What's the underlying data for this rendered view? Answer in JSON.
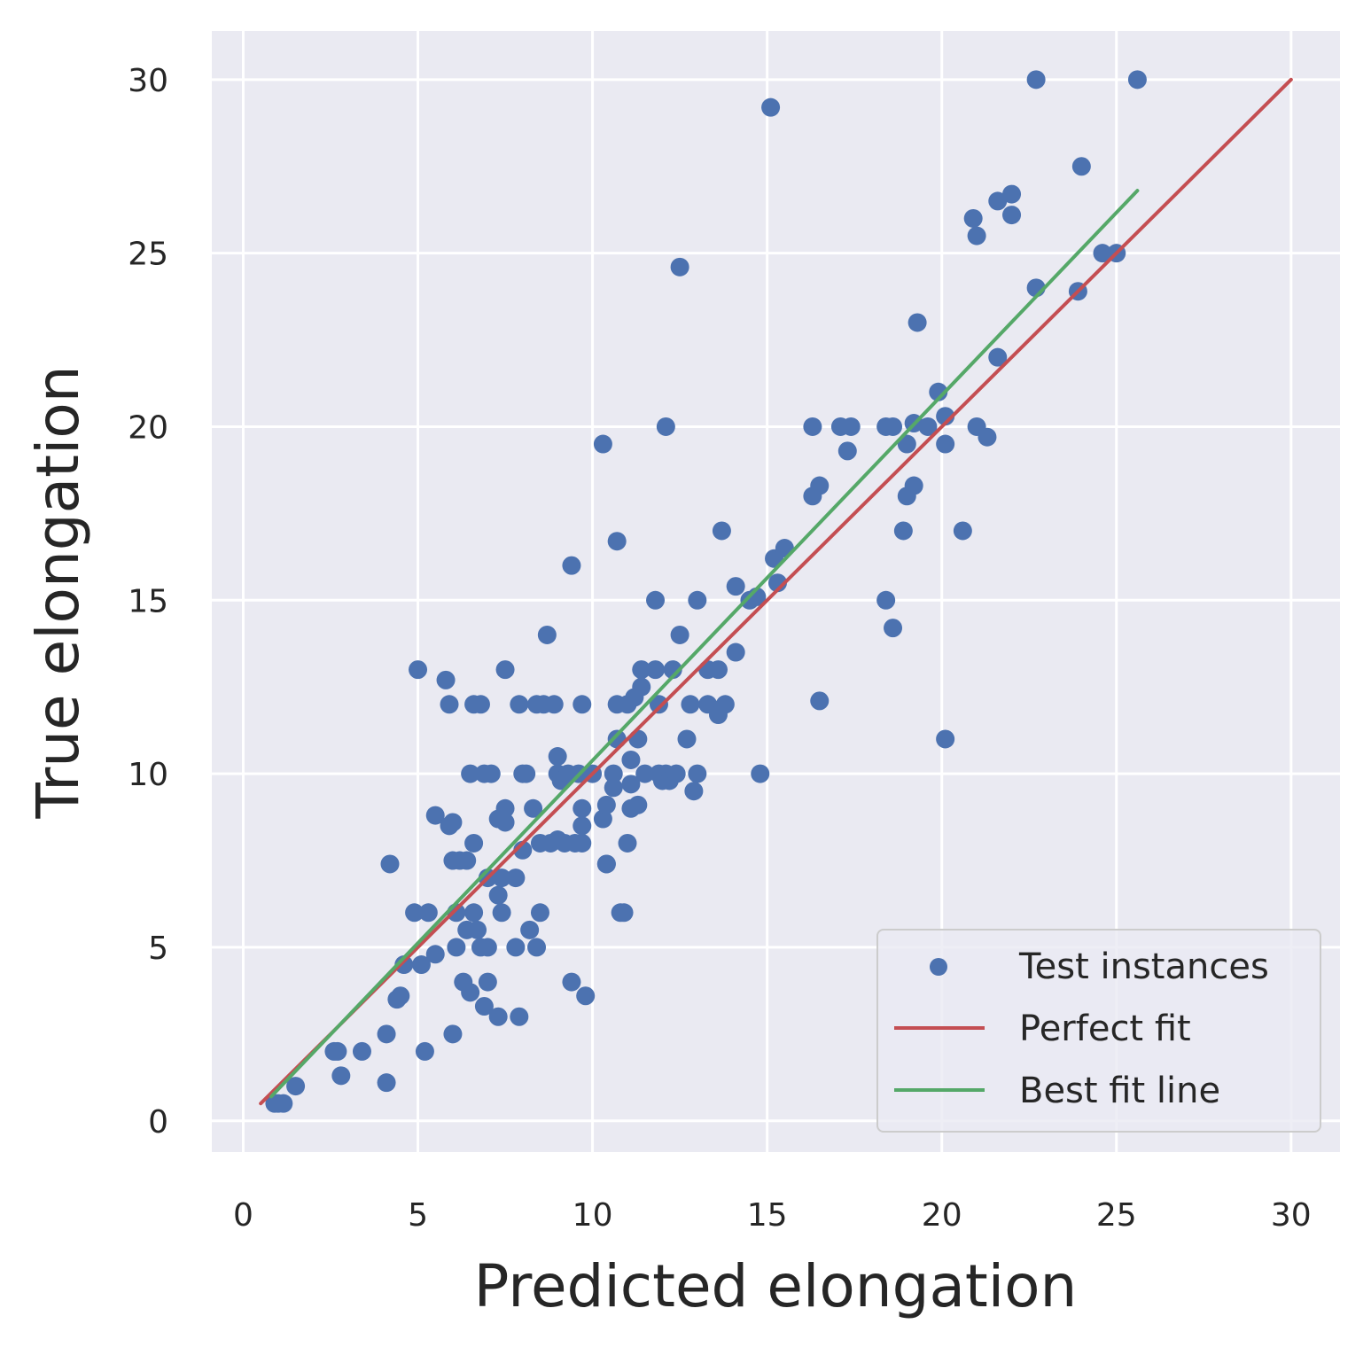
{
  "chart_data": {
    "type": "scatter",
    "xlabel": "Predicted elongation",
    "ylabel": "True elongation",
    "xlim": [
      -0.9,
      31.4
    ],
    "ylim": [
      -0.9,
      31.4
    ],
    "xticks": [
      0,
      5,
      10,
      15,
      20,
      25,
      30
    ],
    "yticks": [
      0,
      5,
      10,
      15,
      20,
      25,
      30
    ],
    "grid": true,
    "legend_position": "lower-right",
    "colors": {
      "background": "#eaeaf2",
      "grid": "#ffffff",
      "points": "#4c72b0",
      "perfect_fit": "#c44e52",
      "best_fit": "#55a868",
      "legend_frame": "#cccccc"
    },
    "series": [
      {
        "name": "Test instances",
        "type": "scatter",
        "points": [
          [
            0.9,
            0.5
          ],
          [
            1.0,
            0.5
          ],
          [
            1.15,
            0.5
          ],
          [
            1.5,
            1.0
          ],
          [
            2.6,
            2.0
          ],
          [
            2.7,
            2.0
          ],
          [
            2.8,
            1.3
          ],
          [
            3.4,
            2.0
          ],
          [
            4.1,
            1.1
          ],
          [
            4.1,
            2.5
          ],
          [
            4.2,
            7.4
          ],
          [
            4.4,
            3.5
          ],
          [
            4.5,
            3.6
          ],
          [
            4.6,
            4.5
          ],
          [
            4.9,
            6.0
          ],
          [
            5.0,
            13.0
          ],
          [
            5.1,
            4.5
          ],
          [
            5.2,
            2.0
          ],
          [
            5.3,
            6.0
          ],
          [
            5.5,
            4.8
          ],
          [
            5.5,
            8.8
          ],
          [
            5.8,
            12.7
          ],
          [
            5.9,
            8.5
          ],
          [
            5.9,
            12.0
          ],
          [
            6.0,
            2.5
          ],
          [
            6.0,
            7.5
          ],
          [
            6.0,
            8.6
          ],
          [
            6.1,
            5.0
          ],
          [
            6.1,
            6.0
          ],
          [
            6.2,
            7.5
          ],
          [
            6.3,
            4.0
          ],
          [
            6.4,
            7.5
          ],
          [
            6.4,
            5.5
          ],
          [
            6.5,
            3.7
          ],
          [
            6.5,
            10.0
          ],
          [
            6.6,
            8.0
          ],
          [
            6.6,
            12.0
          ],
          [
            6.6,
            6.0
          ],
          [
            6.7,
            5.5
          ],
          [
            6.8,
            5.0
          ],
          [
            6.8,
            12.0
          ],
          [
            6.9,
            3.3
          ],
          [
            6.9,
            10.0
          ],
          [
            7.0,
            4.0
          ],
          [
            7.0,
            5.0
          ],
          [
            7.0,
            7.0
          ],
          [
            7.1,
            10.0
          ],
          [
            7.3,
            6.5
          ],
          [
            7.3,
            8.7
          ],
          [
            7.3,
            3.0
          ],
          [
            7.4,
            6.0
          ],
          [
            7.4,
            7.0
          ],
          [
            7.5,
            9.0
          ],
          [
            7.5,
            8.6
          ],
          [
            7.5,
            13.0
          ],
          [
            7.8,
            5.0
          ],
          [
            7.8,
            7.0
          ],
          [
            7.9,
            3.0
          ],
          [
            7.9,
            12.0
          ],
          [
            8.0,
            7.8
          ],
          [
            8.0,
            10.0
          ],
          [
            8.1,
            10.0
          ],
          [
            8.2,
            5.5
          ],
          [
            8.3,
            9.0
          ],
          [
            8.4,
            5.0
          ],
          [
            8.4,
            12.0
          ],
          [
            8.5,
            6.0
          ],
          [
            8.5,
            8.0
          ],
          [
            8.6,
            12.0
          ],
          [
            8.7,
            14.0
          ],
          [
            8.8,
            8.0
          ],
          [
            8.9,
            12.0
          ],
          [
            9.0,
            8.1
          ],
          [
            9.0,
            10.0
          ],
          [
            9.0,
            10.5
          ],
          [
            9.1,
            9.8
          ],
          [
            9.2,
            8.0
          ],
          [
            9.3,
            10.0
          ],
          [
            9.4,
            16.0
          ],
          [
            9.4,
            4.0
          ],
          [
            9.5,
            8.0
          ],
          [
            9.6,
            10.0
          ],
          [
            9.7,
            8.0
          ],
          [
            9.7,
            9.0
          ],
          [
            9.7,
            12.0
          ],
          [
            9.7,
            8.5
          ],
          [
            9.8,
            3.6
          ],
          [
            10.0,
            10.0
          ],
          [
            10.3,
            8.7
          ],
          [
            10.3,
            19.5
          ],
          [
            10.4,
            9.1
          ],
          [
            10.4,
            7.4
          ],
          [
            10.4,
            7.4
          ],
          [
            10.6,
            9.6
          ],
          [
            10.6,
            10.0
          ],
          [
            10.7,
            12.0
          ],
          [
            10.7,
            16.7
          ],
          [
            10.7,
            11.0
          ],
          [
            10.8,
            6.0
          ],
          [
            10.9,
            6.0
          ],
          [
            11.0,
            12.0
          ],
          [
            11.0,
            8.0
          ],
          [
            11.1,
            9.7
          ],
          [
            11.1,
            10.4
          ],
          [
            11.1,
            9.0
          ],
          [
            11.2,
            12.2
          ],
          [
            11.3,
            9.1
          ],
          [
            11.3,
            11.0
          ],
          [
            11.4,
            12.5
          ],
          [
            11.4,
            13.0
          ],
          [
            11.5,
            10.0
          ],
          [
            11.8,
            15.0
          ],
          [
            11.8,
            13.0
          ],
          [
            11.9,
            12.0
          ],
          [
            11.9,
            10.0
          ],
          [
            12.0,
            9.8
          ],
          [
            12.1,
            20.0
          ],
          [
            12.1,
            10.0
          ],
          [
            12.2,
            9.8
          ],
          [
            12.3,
            13.0
          ],
          [
            12.4,
            10.0
          ],
          [
            12.5,
            14.0
          ],
          [
            12.5,
            24.6
          ],
          [
            12.7,
            11.0
          ],
          [
            12.8,
            12.0
          ],
          [
            12.9,
            9.5
          ],
          [
            13.0,
            15.0
          ],
          [
            13.0,
            10.0
          ],
          [
            13.3,
            12.0
          ],
          [
            13.3,
            13.0
          ],
          [
            13.6,
            11.7
          ],
          [
            13.6,
            13.0
          ],
          [
            13.7,
            17.0
          ],
          [
            13.8,
            12.0
          ],
          [
            14.1,
            15.4
          ],
          [
            14.1,
            13.5
          ],
          [
            14.5,
            15.0
          ],
          [
            14.7,
            15.1
          ],
          [
            14.8,
            10.0
          ],
          [
            15.1,
            29.2
          ],
          [
            15.2,
            16.2
          ],
          [
            15.3,
            15.5
          ],
          [
            15.5,
            16.5
          ],
          [
            16.3,
            18.0
          ],
          [
            16.3,
            20.0
          ],
          [
            16.5,
            18.3
          ],
          [
            16.5,
            12.1
          ],
          [
            17.1,
            20.0
          ],
          [
            17.3,
            19.3
          ],
          [
            17.4,
            20.0
          ],
          [
            18.4,
            15.0
          ],
          [
            18.4,
            20.0
          ],
          [
            18.6,
            14.2
          ],
          [
            18.6,
            20.0
          ],
          [
            18.9,
            17.0
          ],
          [
            19.0,
            19.5
          ],
          [
            19.0,
            18.0
          ],
          [
            19.2,
            18.3
          ],
          [
            19.2,
            20.1
          ],
          [
            19.3,
            23.0
          ],
          [
            19.6,
            20.0
          ],
          [
            19.9,
            21.0
          ],
          [
            20.1,
            20.3
          ],
          [
            20.1,
            19.5
          ],
          [
            20.1,
            11.0
          ],
          [
            20.6,
            17.0
          ],
          [
            20.9,
            26.0
          ],
          [
            21.0,
            25.5
          ],
          [
            21.0,
            20.0
          ],
          [
            21.3,
            19.7
          ],
          [
            21.6,
            26.5
          ],
          [
            21.6,
            22.0
          ],
          [
            22.0,
            26.7
          ],
          [
            22.0,
            26.1
          ],
          [
            22.7,
            30.0
          ],
          [
            22.7,
            24.0
          ],
          [
            23.9,
            23.9
          ],
          [
            24.0,
            27.5
          ],
          [
            24.6,
            25.0
          ],
          [
            25.0,
            25.0
          ],
          [
            25.6,
            30.0
          ]
        ]
      },
      {
        "name": "Perfect fit",
        "type": "line",
        "x": [
          0.5,
          30.0
        ],
        "y": [
          0.5,
          30.0
        ]
      },
      {
        "name": "Best fit line",
        "type": "line",
        "x": [
          0.8,
          25.6
        ],
        "y": [
          0.7,
          26.8
        ]
      }
    ]
  }
}
